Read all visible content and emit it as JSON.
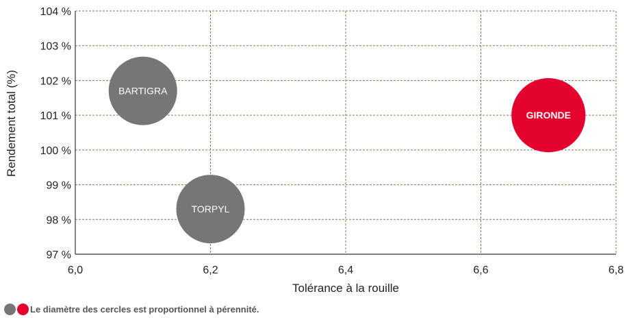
{
  "chart_data": {
    "type": "bubble",
    "xlabel": "Tolérance à la rouille",
    "ylabel": "Rendement total (%)",
    "xlim": [
      6.0,
      6.8
    ],
    "ylim": [
      97,
      104
    ],
    "x_ticks": [
      "6,0",
      "6,2",
      "6,4",
      "6,6",
      "6,8"
    ],
    "y_ticks": [
      "97 %",
      "98 %",
      "99 %",
      "100 %",
      "101 %",
      "102 %",
      "103 %",
      "104 %"
    ],
    "grid": true,
    "points": [
      {
        "name": "BARTIGRA",
        "x": 6.1,
        "y": 101.7,
        "size": 1,
        "color": "#767676",
        "bold": false
      },
      {
        "name": "TORPYL",
        "x": 6.2,
        "y": 98.3,
        "size": 1,
        "color": "#767676",
        "bold": false
      },
      {
        "name": "GIRONDE",
        "x": 6.7,
        "y": 101.0,
        "size": 1.17,
        "color": "#e4032e",
        "bold": true
      }
    ]
  },
  "footnote": {
    "text": "Le diamètre des cercles est proportionnel à pérennité.",
    "dot_colors": [
      "#767676",
      "#e4032e"
    ]
  }
}
